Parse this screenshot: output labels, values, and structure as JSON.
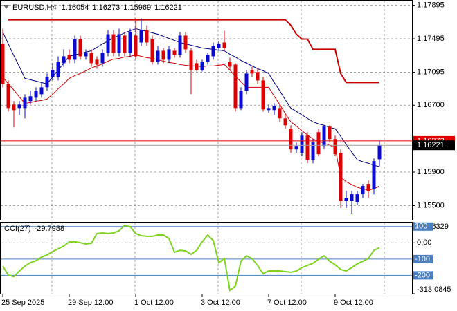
{
  "chart_data": {
    "type": "candlestick",
    "symbol": "EURUSD,H4",
    "categories": [
      "25 Sep 2025",
      null,
      null,
      null,
      null,
      null,
      null,
      null,
      null,
      null,
      null,
      null,
      "29 Sep 12:00",
      null,
      null,
      null,
      null,
      null,
      null,
      null,
      null,
      null,
      null,
      null,
      "1 Oct 12:00",
      null,
      null,
      null,
      null,
      null,
      null,
      null,
      null,
      null,
      null,
      null,
      "3 Oct 12:00",
      null,
      null,
      null,
      null,
      null,
      null,
      null,
      null,
      null,
      null,
      null,
      "7 Oct 12:00",
      null,
      null,
      null,
      null,
      null,
      null,
      null,
      null,
      null,
      null,
      null,
      "9 Oct 12:00",
      null,
      null,
      null,
      null,
      null,
      null,
      null,
      null
    ],
    "ohlc": [
      [
        1.17434,
        1.17615,
        1.16914,
        1.16955
      ],
      [
        1.16955,
        1.16996,
        1.16625,
        1.16666
      ],
      [
        1.16708,
        1.16749,
        1.16435,
        1.16642
      ],
      [
        1.16666,
        1.16749,
        1.16584,
        1.16708
      ],
      [
        1.16666,
        1.16831,
        1.16543,
        1.1679
      ],
      [
        1.16749,
        1.16873,
        1.16708,
        1.16807
      ],
      [
        1.1679,
        1.16914,
        1.16749,
        1.16873
      ],
      [
        1.16831,
        1.16972,
        1.1679,
        1.16914
      ],
      [
        1.16914,
        1.17079,
        1.16873,
        1.17038
      ],
      [
        1.17038,
        1.17203,
        1.16996,
        1.1712
      ],
      [
        1.17038,
        1.17285,
        1.16996,
        1.17219
      ],
      [
        1.17203,
        1.17368,
        1.17161,
        1.17285
      ],
      [
        1.17302,
        1.17368,
        1.17203,
        1.17244
      ],
      [
        1.17244,
        1.17533,
        1.17203,
        1.17491
      ],
      [
        1.17491,
        1.17533,
        1.17244,
        1.17285
      ],
      [
        1.17285,
        1.17368,
        1.17244,
        1.17326
      ],
      [
        1.17326,
        1.17368,
        1.17161,
        1.17203
      ],
      [
        1.17244,
        1.17285,
        1.17137,
        1.17186
      ],
      [
        1.17203,
        1.17368,
        1.17161,
        1.17326
      ],
      [
        1.17326,
        1.17599,
        1.17285,
        1.17549
      ],
      [
        1.17549,
        1.17599,
        1.17285,
        1.17326
      ],
      [
        1.17326,
        1.17615,
        1.17285,
        1.17549
      ],
      [
        1.17533,
        1.17574,
        1.17285,
        1.17326
      ],
      [
        1.17326,
        1.17615,
        1.17285,
        1.17574
      ],
      [
        1.17533,
        1.17739,
        1.17244,
        1.17285
      ],
      [
        1.1745,
        1.17739,
        1.17409,
        1.17599
      ],
      [
        1.17599,
        1.17656,
        1.17409,
        1.1745
      ],
      [
        1.17491,
        1.17533,
        1.17186,
        1.17219
      ],
      [
        1.17219,
        1.17409,
        1.17186,
        1.17351
      ],
      [
        1.17351,
        1.17384,
        1.17203,
        1.17244
      ],
      [
        1.17244,
        1.17409,
        1.17203,
        1.17368
      ],
      [
        1.17351,
        1.17384,
        1.17269,
        1.17302
      ],
      [
        1.17302,
        1.17574,
        1.17269,
        1.17533
      ],
      [
        1.17533,
        1.17574,
        1.17326,
        1.17368
      ],
      [
        1.17351,
        1.17384,
        1.16831,
        1.1712
      ],
      [
        1.17203,
        1.17244,
        1.17104,
        1.1712
      ],
      [
        1.1712,
        1.17244,
        1.17104,
        1.17219
      ],
      [
        1.17219,
        1.17326,
        1.17186,
        1.17302
      ],
      [
        1.17285,
        1.1745,
        1.17244,
        1.17409
      ],
      [
        1.17384,
        1.17467,
        1.17351,
        1.17434
      ],
      [
        1.1745,
        1.1759,
        1.17351,
        1.17384
      ],
      [
        1.17219,
        1.17269,
        1.1712,
        1.17161
      ],
      [
        1.17186,
        1.17203,
        1.16625,
        1.16666
      ],
      [
        1.16666,
        1.16914,
        1.16642,
        1.16873
      ],
      [
        1.16873,
        1.1712,
        1.16831,
        1.17079
      ],
      [
        1.1712,
        1.17161,
        1.17038,
        1.17079
      ],
      [
        1.17095,
        1.17137,
        1.16955,
        1.16996
      ],
      [
        1.16996,
        1.17038,
        1.16625,
        1.1665
      ],
      [
        1.16642,
        1.16708,
        1.16609,
        1.16666
      ],
      [
        1.16642,
        1.16724,
        1.16584,
        1.16691
      ],
      [
        1.16666,
        1.16708,
        1.16501,
        1.16543
      ],
      [
        1.16543,
        1.16584,
        1.16419,
        1.1646
      ],
      [
        1.16419,
        1.1646,
        1.1613,
        1.16171
      ],
      [
        1.16171,
        1.16254,
        1.1613,
        1.16213
      ],
      [
        1.1613,
        1.16378,
        1.16089,
        1.16336
      ],
      [
        1.16336,
        1.16378,
        1.16006,
        1.16048
      ],
      [
        1.16048,
        1.16295,
        1.16006,
        1.16254
      ],
      [
        1.16378,
        1.16419,
        1.16089,
        1.16114
      ],
      [
        1.16213,
        1.1646,
        1.16171,
        1.16444
      ],
      [
        1.16444,
        1.1646,
        1.16254,
        1.16295
      ],
      [
        1.16295,
        1.16336,
        1.16089,
        1.16114
      ],
      [
        1.1613,
        1.16171,
        1.1547,
        1.15553
      ],
      [
        1.15553,
        1.15676,
        1.1547,
        1.15594
      ],
      [
        1.15553,
        1.15676,
        1.15404,
        1.15635
      ],
      [
        1.15536,
        1.15676,
        1.15511,
        1.15635
      ],
      [
        1.15635,
        1.15759,
        1.15594,
        1.15734
      ],
      [
        1.15759,
        1.158,
        1.15594,
        1.15676
      ],
      [
        1.15701,
        1.16064,
        1.15635,
        1.16031
      ],
      [
        1.16054,
        1.16273,
        1.15969,
        1.16221
      ]
    ],
    "up_color": "#0a0ad2",
    "down_color": "#e00000",
    "ylim": [
      1.1533,
      1.1795
    ],
    "yticks": [
      1.17895,
      1.17495,
      1.17095,
      {
        "value": 1.167,
        "label": "1.16700"
      },
      {
        "value": 1.159,
        "label": "1.15900"
      },
      {
        "value": 1.155,
        "label": "1.15500"
      }
    ],
    "grid": true,
    "ask": 1.16273,
    "ask_color": "#e00000",
    "lines": [
      {
        "color": "#000080",
        "values": [
          1.17574,
          1.17434,
          1.17293,
          1.17161,
          1.17021,
          1.17005,
          1.16988,
          1.16972,
          1.16955,
          1.17038,
          1.1712,
          1.17203,
          1.17285,
          1.17302,
          1.17318,
          1.17335,
          1.17351,
          1.17392,
          1.17434,
          1.17467,
          1.17508,
          1.17533,
          1.17566,
          1.1759,
          1.17615,
          1.17599,
          1.17582,
          1.17566,
          1.17549,
          1.17524,
          1.175,
          1.17475,
          1.1745,
          1.17434,
          1.17417,
          1.17401,
          1.17384,
          1.17376,
          1.17368,
          1.17359,
          1.17351,
          1.1731,
          1.17277,
          1.17236,
          1.17203,
          1.1717,
          1.17137,
          1.17112,
          1.17079,
          1.16972,
          1.16873,
          1.16765,
          1.16666,
          1.16625,
          1.16584,
          1.16543,
          1.16501,
          1.16477,
          1.1646,
          1.16435,
          1.16419,
          1.16328,
          1.16229,
          1.16138,
          1.16048,
          1.16023,
          1.16006,
          1.15982,
          1.15965
        ]
      },
      {
        "color": "#cc0000",
        "values": [
          1.17038,
          1.16955,
          1.16881,
          1.16798,
          1.16724,
          1.16732,
          1.16749,
          1.16757,
          1.16774,
          1.16831,
          1.16897,
          1.16955,
          1.17021,
          1.17054,
          1.17079,
          1.17112,
          1.17145,
          1.1717,
          1.17194,
          1.17227,
          1.17252,
          1.1726,
          1.17277,
          1.17285,
          1.17302,
          1.17285,
          1.17269,
          1.1726,
          1.17244,
          1.17227,
          1.17211,
          1.17203,
          1.17186,
          1.17178,
          1.1717,
          1.1717,
          1.17161,
          1.1717,
          1.1717,
          1.17178,
          1.17186,
          1.1712,
          1.17046,
          1.1698,
          1.16914,
          1.16914,
          1.16914,
          1.16914,
          1.16914,
          1.16807,
          1.16708,
          1.166,
          1.16501,
          1.16452,
          1.16394,
          1.16345,
          1.16295,
          1.1627,
          1.16246,
          1.16221,
          1.16196,
          1.15841,
          1.15784,
          1.15751,
          1.15718,
          1.15701,
          1.15685,
          1.15701,
          1.15734
        ]
      },
      {
        "color": "#cc0000",
        "values": [
          null,
          1.17722,
          1.17722,
          1.17722,
          1.17722,
          1.17722,
          1.17722,
          1.17722,
          1.17722,
          1.17722,
          1.17722,
          1.17722,
          1.17722,
          1.17722,
          1.17722,
          1.17722,
          1.17722,
          1.17722,
          1.17722,
          1.17722,
          1.17722,
          1.17722,
          1.17722,
          1.17722,
          1.17722,
          1.17722,
          1.17722,
          1.17722,
          1.17722,
          1.17722,
          1.17722,
          1.17722,
          1.17722,
          1.17722,
          1.17722,
          1.17722,
          1.17722,
          1.17722,
          1.17722,
          1.17722,
          1.17722,
          1.17722,
          1.17722,
          1.17722,
          1.17722,
          1.17722,
          1.17722,
          1.17722,
          1.17722,
          1.17722,
          1.17722,
          1.17722,
          1.17656,
          1.17549,
          1.17491,
          1.17491,
          1.17368,
          1.17368,
          1.17368,
          1.17368,
          1.17368,
          1.17079,
          1.16972,
          1.16972,
          1.16972,
          1.16972,
          1.16972,
          1.16972,
          1.16972
        ]
      }
    ],
    "indicator": {
      "type": "line",
      "name": "CCI(27)",
      "color": "#7ed321",
      "values": [
        -143,
        -199,
        -208,
        -173,
        -143,
        -122,
        -110,
        -88,
        -75,
        -54,
        -37,
        -20,
        6,
        6,
        1,
        -7,
        -3,
        57,
        61,
        57,
        61,
        74,
        108,
        99,
        57,
        44,
        40,
        40,
        48,
        48,
        27,
        -58,
        -46,
        -50,
        -71,
        -46,
        6,
        48,
        14,
        -122,
        -97,
        -292,
        -266,
        -113,
        -80,
        -97,
        -139,
        -190,
        -173,
        -173,
        -173,
        -177,
        -181,
        -173,
        -152,
        -139,
        -126,
        -101,
        -80,
        -113,
        -135,
        -164,
        -173,
        -152,
        -130,
        -113,
        -97,
        -46,
        -29.7988
      ],
      "y2lim": [
        -313.0845,
        124.6329
      ],
      "y2ticks": [
        124.6329,
        {
          "value": 0,
          "label": "0.00"
        },
        -313.0845
      ],
      "levels": [
        100,
        -100,
        -200
      ],
      "level_color": "#4a7fc1"
    }
  }
}
